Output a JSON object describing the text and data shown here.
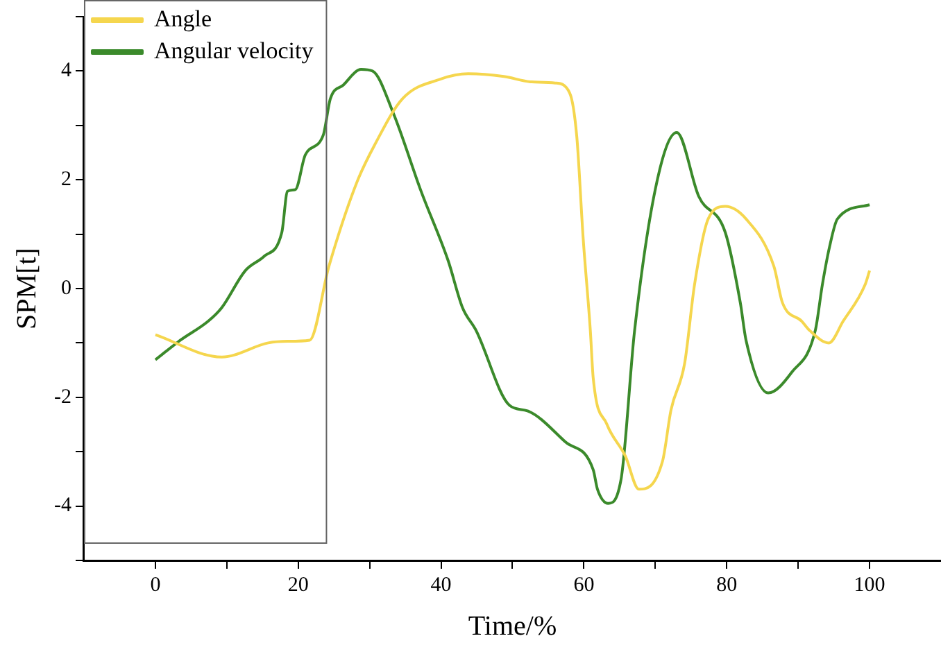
{
  "chart_data": {
    "type": "line",
    "xlabel": "Time/%",
    "ylabel": "SPM[t]",
    "xlim": [
      -10,
      110
    ],
    "ylim": [
      -5,
      5
    ],
    "xticks": [
      0,
      {
        "value": 10,
        "label": null
      },
      20,
      {
        "value": 30,
        "label": null
      },
      40,
      {
        "value": 50,
        "label": null
      },
      60,
      {
        "value": 70,
        "label": null
      },
      80,
      {
        "value": 90,
        "label": null
      },
      100
    ],
    "yticks": [
      {
        "value": -5,
        "label": null
      },
      -4,
      {
        "value": -3,
        "label": null
      },
      -2,
      {
        "value": -1,
        "label": null
      },
      0,
      {
        "value": 1,
        "label": null
      },
      2,
      {
        "value": 3,
        "label": null
      },
      4,
      {
        "value": 5,
        "label": null
      }
    ],
    "grid": false,
    "legend": "top left",
    "marker": "none",
    "line_style": "solid",
    "series": [
      {
        "name": "Angle",
        "color": "#f5d64e",
        "x": [
          0,
          9.3,
          15.8,
          18.5,
          21.6,
          24.3,
          28.2,
          30.7,
          34.6,
          39.9,
          43.8,
          48.8,
          52.7,
          56,
          58,
          59,
          59.9,
          60.9,
          61.3,
          63.2,
          65.8,
          67.7,
          71,
          72.2,
          74.1,
          75.5,
          77.4,
          79.8,
          82.7,
          86.6,
          87.8,
          90.5,
          91.6,
          94.3,
          96.3,
          99.4,
          100
        ],
        "values": [
          -0.85,
          -1.26,
          -1.0,
          -0.97,
          -0.95,
          0.41,
          1.95,
          2.64,
          3.49,
          3.85,
          3.95,
          3.9,
          3.8,
          3.78,
          3.6,
          2.8,
          0.92,
          -0.77,
          -1.64,
          -2.49,
          -3.08,
          -3.69,
          -3.18,
          -2.23,
          -1.38,
          0.08,
          1.28,
          1.51,
          1.28,
          0.41,
          -0.26,
          -0.6,
          -0.77,
          -1.0,
          -0.6,
          0.08,
          0.33
        ]
      },
      {
        "name": "Angular velocity",
        "color": "#3b8a2b",
        "x": [
          0,
          3.5,
          7.4,
          9.3,
          12.6,
          15.2,
          17.7,
          18.5,
          19.6,
          21,
          23.5,
          24.5,
          26.3,
          28.8,
          30.4,
          33.3,
          37.2,
          41,
          43,
          44.9,
          49.6,
          52.1,
          57.4,
          61.3,
          61.9,
          63.4,
          65.2,
          67.1,
          70.2,
          73,
          76.1,
          79.8,
          81.9,
          82.7,
          85.8,
          89.1,
          92.4,
          93.4,
          94.4,
          95.5,
          100
        ],
        "values": [
          -1.31,
          -0.95,
          -0.6,
          -0.35,
          0.33,
          0.59,
          1.03,
          1.79,
          1.82,
          2.46,
          2.82,
          3.49,
          3.74,
          4.03,
          4.0,
          3.23,
          1.79,
          0.51,
          -0.35,
          -0.77,
          -2.15,
          -2.25,
          -2.82,
          -3.33,
          -3.69,
          -3.95,
          -3.51,
          -0.77,
          1.95,
          2.87,
          1.69,
          1.03,
          -0.26,
          -0.95,
          -1.92,
          -1.54,
          -0.77,
          0.08,
          0.77,
          1.28,
          1.54
        ]
      }
    ]
  }
}
